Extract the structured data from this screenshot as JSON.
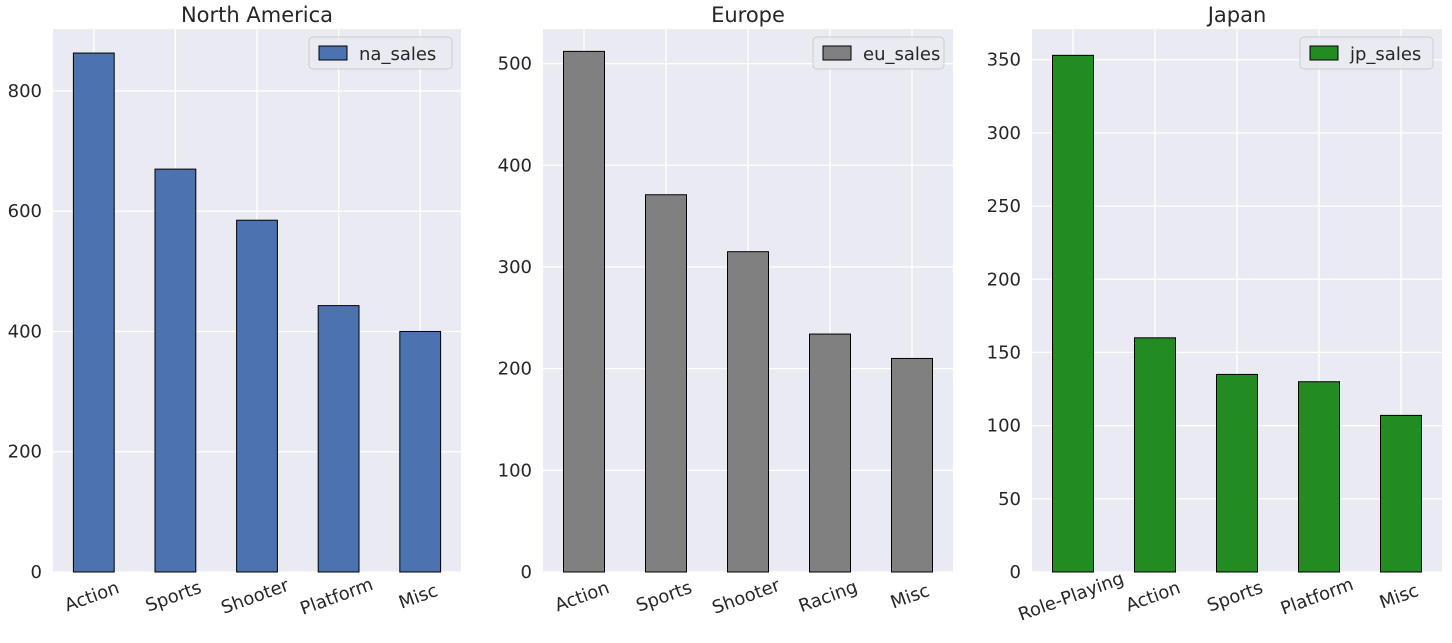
{
  "chart_data": [
    {
      "type": "bar",
      "title": "North America",
      "categories": [
        "Action",
        "Sports",
        "Shooter",
        "Platform",
        "Misc"
      ],
      "series": [
        {
          "name": "na_sales",
          "values": [
            863,
            670,
            585,
            443,
            400
          ]
        }
      ],
      "color": "#4c72b0",
      "ylim": [
        0,
        903
      ],
      "yticks": [
        0,
        200,
        400,
        600,
        800
      ],
      "xlabel": "",
      "ylabel": "",
      "grid": true,
      "legend": "top-right"
    },
    {
      "type": "bar",
      "title": "Europe",
      "categories": [
        "Action",
        "Sports",
        "Shooter",
        "Racing",
        "Misc"
      ],
      "series": [
        {
          "name": "eu_sales",
          "values": [
            512,
            371,
            315,
            234,
            210
          ]
        }
      ],
      "color": "#808080",
      "ylim": [
        0,
        534
      ],
      "yticks": [
        0,
        100,
        200,
        300,
        400,
        500
      ],
      "xlabel": "",
      "ylabel": "",
      "grid": true,
      "legend": "top-right"
    },
    {
      "type": "bar",
      "title": "Japan",
      "categories": [
        "Role-Playing",
        "Action",
        "Sports",
        "Platform",
        "Misc"
      ],
      "series": [
        {
          "name": "jp_sales",
          "values": [
            353,
            160,
            135,
            130,
            107
          ]
        }
      ],
      "color": "#228b22",
      "ylim": [
        0,
        371
      ],
      "yticks": [
        0,
        50,
        100,
        150,
        200,
        250,
        300,
        350
      ],
      "xlabel": "",
      "ylabel": "",
      "grid": true,
      "legend": "top-right"
    }
  ]
}
